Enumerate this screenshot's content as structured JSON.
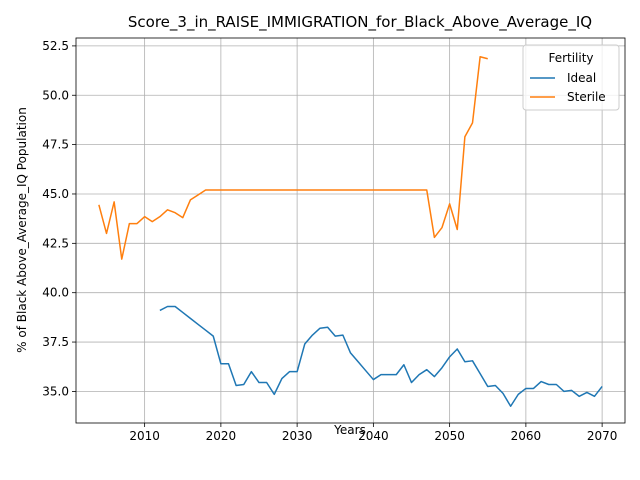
{
  "chart_data": {
    "type": "line",
    "title": "Score_3_in_RAISE_IMMIGRATION_for_Black_Above_Average_IQ",
    "xlabel": "Years",
    "ylabel": "% of Black Above_Average_IQ Population",
    "xlim": [
      2001,
      2073
    ],
    "ylim": [
      33.4,
      52.9
    ],
    "xticks": [
      2010,
      2020,
      2030,
      2040,
      2050,
      2060,
      2070
    ],
    "yticks": [
      35.0,
      37.5,
      40.0,
      42.5,
      45.0,
      47.5,
      50.0,
      52.5
    ],
    "xtick_labels": [
      "2010",
      "2020",
      "2030",
      "2040",
      "2050",
      "2060",
      "2070"
    ],
    "ytick_labels": [
      "35.0",
      "37.5",
      "40.0",
      "42.5",
      "45.0",
      "47.5",
      "50.0",
      "52.5"
    ],
    "grid": true,
    "legend": {
      "title": "Fertility",
      "placement": "top-right"
    },
    "series": [
      {
        "name": "Ideal",
        "color": "#1f77b4",
        "x": [
          2012,
          2013,
          2014,
          2015,
          2016,
          2017,
          2018,
          2019,
          2020,
          2021,
          2022,
          2023,
          2024,
          2025,
          2026,
          2027,
          2028,
          2029,
          2030,
          2031,
          2032,
          2033,
          2034,
          2035,
          2036,
          2037,
          2038,
          2039,
          2040,
          2041,
          2042,
          2043,
          2044,
          2045,
          2046,
          2047,
          2048,
          2049,
          2050,
          2051,
          2052,
          2053,
          2054,
          2055,
          2056,
          2057,
          2058,
          2059,
          2060,
          2061,
          2062,
          2063,
          2064,
          2065,
          2066,
          2067,
          2068,
          2069,
          2070
        ],
        "y": [
          39.1,
          39.3,
          39.3,
          39.0,
          38.7,
          38.4,
          38.1,
          37.8,
          36.4,
          36.4,
          35.3,
          35.35,
          36.0,
          35.45,
          35.45,
          34.85,
          35.65,
          36.0,
          36.0,
          37.4,
          37.85,
          38.2,
          38.25,
          37.8,
          37.85,
          36.95,
          36.5,
          36.05,
          35.6,
          35.85,
          35.85,
          35.85,
          36.35,
          35.45,
          35.85,
          36.1,
          35.75,
          36.2,
          36.75,
          37.15,
          36.5,
          36.55,
          35.9,
          35.25,
          35.3,
          34.9,
          34.25,
          34.85,
          35.15,
          35.15,
          35.5,
          35.35,
          35.35,
          35.0,
          35.05,
          34.75,
          34.95,
          34.75,
          35.25
        ]
      },
      {
        "name": "Sterile",
        "color": "#ff7f0e",
        "x": [
          2004,
          2005,
          2006,
          2007,
          2008,
          2009,
          2010,
          2011,
          2012,
          2013,
          2014,
          2015,
          2016,
          2017,
          2018,
          2019,
          2020,
          2021,
          2022,
          2023,
          2024,
          2025,
          2026,
          2027,
          2028,
          2029,
          2030,
          2031,
          2032,
          2033,
          2034,
          2035,
          2036,
          2037,
          2038,
          2039,
          2040,
          2041,
          2042,
          2043,
          2044,
          2045,
          2046,
          2047,
          2048,
          2049,
          2050,
          2051,
          2052,
          2053,
          2054,
          2055
        ],
        "y": [
          44.45,
          43.0,
          44.6,
          41.7,
          43.5,
          43.5,
          43.85,
          43.6,
          43.85,
          44.2,
          44.05,
          43.8,
          44.7,
          44.95,
          45.2,
          45.2,
          45.2,
          45.2,
          45.2,
          45.2,
          45.2,
          45.2,
          45.2,
          45.2,
          45.2,
          45.2,
          45.2,
          45.2,
          45.2,
          45.2,
          45.2,
          45.2,
          45.2,
          45.2,
          45.2,
          45.2,
          45.2,
          45.2,
          45.2,
          45.2,
          45.2,
          45.2,
          45.2,
          45.2,
          42.8,
          43.3,
          44.5,
          43.2,
          47.9,
          48.6,
          51.95,
          51.85
        ]
      }
    ]
  }
}
